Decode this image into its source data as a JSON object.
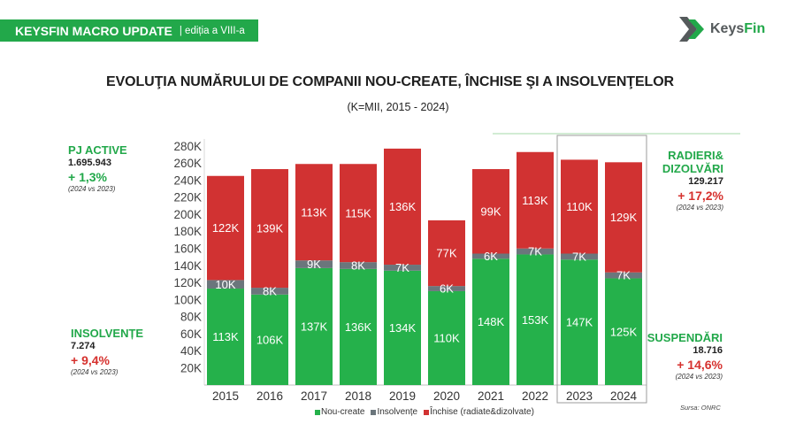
{
  "header": {
    "brand": "KEYSFIN MACRO UPDATE",
    "edition": "| ediția a VIII-a"
  },
  "logo": {
    "icon": "keysfin-chevron-logo-icon",
    "text_part1": "Keys",
    "text_part2": "Fin"
  },
  "colors": {
    "brand_green": "#22a84a",
    "text_dark": "#1e1e1e",
    "logo_gray": "#555a5c",
    "highlight_box": "#9b9b9b",
    "divider_green": "#d2ecd4"
  },
  "chart_data": {
    "type": "bar",
    "stacked": true,
    "title": "EVOLUŢIA NUMĂRULUI DE COMPANII NOU-CREATE, ÎNCHISE ŞI A INSOLVENŢELOR",
    "subtitle": "(K=MII, 2015 - 2024)",
    "unit": "K",
    "categories": [
      "2015",
      "2016",
      "2017",
      "2018",
      "2019",
      "2020",
      "2021",
      "2022",
      "2023",
      "2024"
    ],
    "series": [
      {
        "name": "Nou-create",
        "color": "#25b14b",
        "values": [
          113,
          106,
          137,
          136,
          134,
          110,
          148,
          153,
          147,
          125
        ]
      },
      {
        "name": "Insolvențe",
        "color": "#6b767c",
        "values": [
          10,
          8,
          9,
          8,
          7,
          6,
          6,
          7,
          7,
          7
        ]
      },
      {
        "name": "Închise (radiate&dizolvate)",
        "color": "#d13232",
        "values": [
          122,
          139,
          113,
          115,
          136,
          77,
          99,
          113,
          110,
          129
        ]
      }
    ],
    "ylim": [
      0,
      280
    ],
    "y_ticks": [
      20,
      40,
      60,
      80,
      100,
      120,
      140,
      160,
      180,
      200,
      220,
      240,
      260,
      280
    ],
    "grid": false,
    "legend": "bottom",
    "data_labels": true,
    "highlighted_categories": [
      "2023",
      "2024"
    ]
  },
  "annotations": {
    "left": [
      {
        "label": "PJ ACTIVE",
        "value": "1.695.943",
        "change": "+ 1,3%",
        "change_color": "#22a84a",
        "period": "(2024 vs 2023)"
      },
      {
        "label": "INSOLVENȚE",
        "value": "7.274",
        "change": "+ 9,4%",
        "change_color": "#d6312e",
        "period": "(2024 vs 2023)"
      }
    ],
    "right": [
      {
        "label": "RADIERI&\nDIZOLVĂRI",
        "value": "129.217",
        "change": "+ 17,2%",
        "change_color": "#d6312e",
        "period": "(2024 vs 2023)"
      },
      {
        "label": "SUSPENDĂRI",
        "value": "18.716",
        "change": "+ 14,6%",
        "change_color": "#d6312e",
        "period": "(2024 vs 2023)"
      }
    ]
  },
  "source": "Sursa: ONRC"
}
